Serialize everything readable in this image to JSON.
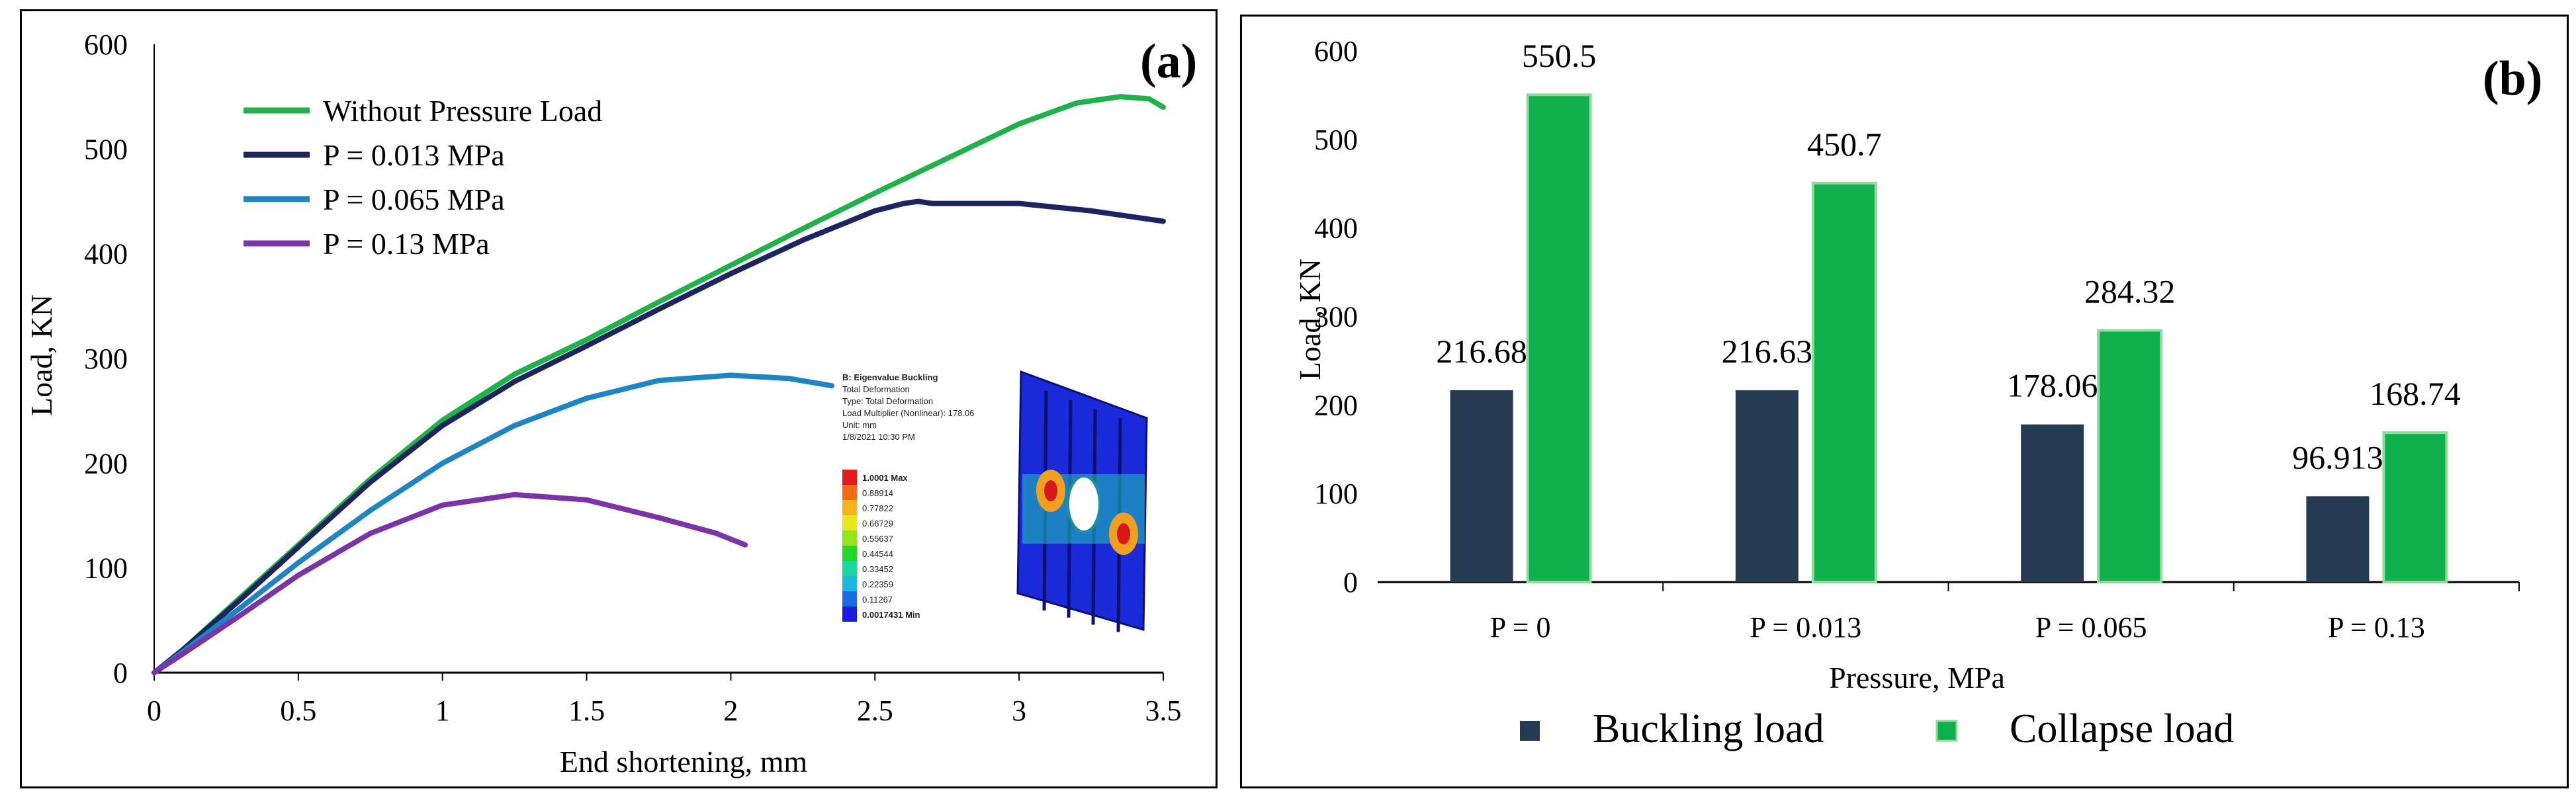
{
  "chart_data": [
    {
      "panel": "(a)",
      "type": "line",
      "title": "",
      "xlabel": "End shortening, mm",
      "ylabel": "Load, KN",
      "xlim": [
        0,
        3.5
      ],
      "ylim": [
        0,
        600
      ],
      "xticks": [
        "0",
        "0.5",
        "1",
        "1.5",
        "2",
        "2.5",
        "3",
        "3.5"
      ],
      "yticks": [
        "0",
        "100",
        "200",
        "300",
        "400",
        "500",
        "600"
      ],
      "legend_position": "top-left",
      "series": [
        {
          "name": "Without Pressure Load",
          "color": "#1fb24a",
          "x": [
            0,
            0.1,
            0.3,
            0.5,
            0.75,
            1.0,
            1.25,
            1.5,
            1.75,
            2.0,
            2.25,
            2.5,
            2.75,
            3.0,
            3.2,
            3.35,
            3.45,
            3.5
          ],
          "y": [
            0,
            22,
            72,
            122,
            185,
            241,
            285,
            318,
            354,
            389,
            424,
            458,
            491,
            524,
            544,
            550,
            548,
            540
          ]
        },
        {
          "name": "P = 0.013 MPa",
          "color": "#1c2462",
          "x": [
            0,
            0.1,
            0.3,
            0.5,
            0.75,
            1.0,
            1.25,
            1.5,
            1.75,
            2.0,
            2.25,
            2.5,
            2.6,
            2.65,
            2.7,
            3.0,
            3.25,
            3.5
          ],
          "y": [
            0,
            22,
            70,
            120,
            182,
            236,
            278,
            312,
            347,
            381,
            413,
            441,
            448,
            450,
            448,
            448,
            441,
            431
          ]
        },
        {
          "name": "P = 0.065 MPa",
          "color": "#1f84c4",
          "x": [
            0,
            0.1,
            0.3,
            0.5,
            0.75,
            1.0,
            1.25,
            1.5,
            1.75,
            2.0,
            2.2,
            2.35
          ],
          "y": [
            0,
            20,
            62,
            105,
            155,
            200,
            236,
            262,
            279,
            284,
            281,
            274
          ]
        },
        {
          "name": "P = 0.13 MPa",
          "color": "#7b33a8",
          "x": [
            0,
            0.1,
            0.3,
            0.5,
            0.75,
            1.0,
            1.25,
            1.5,
            1.75,
            1.95,
            2.05
          ],
          "y": [
            0,
            18,
            55,
            93,
            133,
            160,
            170,
            165,
            148,
            133,
            122
          ]
        }
      ],
      "inset": {
        "title": "B: Eigenvalue Buckling",
        "lines": [
          "Total Deformation",
          "Type: Total Deformation",
          "Load Multiplier (Nonlinear): 178.06",
          "Unit: mm",
          "1/8/2021 10:30 PM"
        ],
        "scale": [
          "1.0001 Max",
          "0.88914",
          "0.77822",
          "0.66729",
          "0.55637",
          "0.44544",
          "0.33452",
          "0.22359",
          "0.11267",
          "0.0017431 Min"
        ],
        "scale_colors": [
          "#e51a1a",
          "#f26b18",
          "#f5b21a",
          "#e9e81e",
          "#95e21f",
          "#22d62a",
          "#1ad6a2",
          "#1ab8e0",
          "#1a6be8",
          "#1a1ae0"
        ]
      }
    },
    {
      "panel": "(b)",
      "type": "bar",
      "title": "",
      "xlabel": "Pressure, MPa",
      "ylabel": "Load, KN",
      "ylim": [
        0,
        600
      ],
      "yticks": [
        "0",
        "100",
        "200",
        "300",
        "400",
        "500",
        "600"
      ],
      "categories": [
        "P = 0",
        "P = 0.013",
        "P = 0.065",
        "P = 0.13"
      ],
      "legend_position": "bottom",
      "series": [
        {
          "name": "Buckling load",
          "color": "#263b52",
          "values": [
            216.68,
            216.63,
            178.06,
            96.913
          ],
          "labels": [
            "216.68",
            "216.63",
            "178.06",
            "96.913"
          ]
        },
        {
          "name": "Collapse load",
          "color": "#0fb04b",
          "values": [
            550.5,
            450.7,
            284.32,
            168.74
          ],
          "labels": [
            "550.5",
            "450.7",
            "284.32",
            "168.74"
          ]
        }
      ]
    }
  ]
}
